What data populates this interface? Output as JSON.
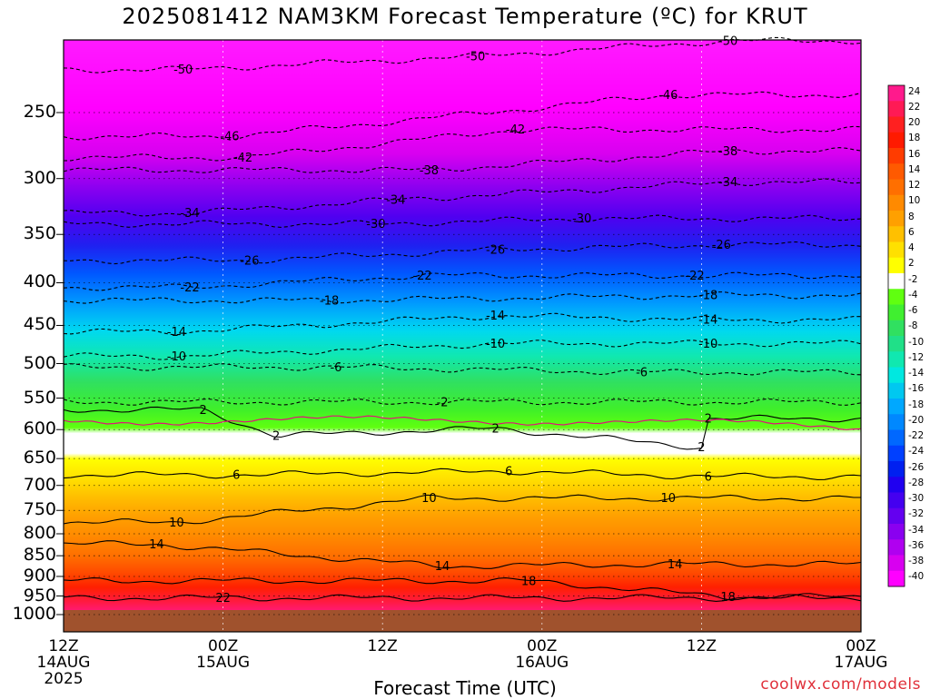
{
  "chart_data": {
    "type": "heatmap",
    "title": "2025081412 NAM3KM Forecast Temperature (ºC) for KRUT",
    "xlabel": "Forecast Time (UTC)",
    "ylabel": "",
    "credit": "coolwx.com/models",
    "x_ticks": [
      {
        "top": "12Z",
        "bottom": "14AUG",
        "extra": "2025",
        "hours": 0
      },
      {
        "top": "00Z",
        "bottom": "15AUG",
        "extra": "",
        "hours": 12
      },
      {
        "top": "12Z",
        "bottom": "",
        "extra": "",
        "hours": 24
      },
      {
        "top": "00Z",
        "bottom": "16AUG",
        "extra": "",
        "hours": 36
      },
      {
        "top": "12Z",
        "bottom": "",
        "extra": "",
        "hours": 48
      },
      {
        "top": "00Z",
        "bottom": "17AUG",
        "extra": "",
        "hours": 60
      }
    ],
    "y_ticks": [
      250,
      300,
      350,
      400,
      450,
      500,
      550,
      600,
      650,
      700,
      750,
      800,
      850,
      900,
      950,
      1000
    ],
    "yaxis_type": "pressure (hPa), inverted",
    "xlim_hours": [
      0,
      60
    ],
    "grid": true,
    "colorbar_labels": [
      "24",
      "22",
      "20",
      "18",
      "16",
      "14",
      "12",
      "10",
      "8",
      "6",
      "4",
      "2",
      "-2",
      "-4",
      "-6",
      "-8",
      "-10",
      "-12",
      "-14",
      "-16",
      "-18",
      "-20",
      "-22",
      "-24",
      "-26",
      "-28",
      "-30",
      "-32",
      "-34",
      "-36",
      "-38",
      "-40"
    ],
    "colorbar_colors": [
      "#ff1a8c",
      "#ff1a55",
      "#ff2020",
      "#ff1a00",
      "#ff3c00",
      "#ff5a00",
      "#ff6f00",
      "#ff8a00",
      "#ffa000",
      "#ffc000",
      "#ffe000",
      "#ffff00",
      "#ffffff",
      "#60ff10",
      "#40ef30",
      "#30e060",
      "#20e088",
      "#10e8b0",
      "#00e8e0",
      "#00c8f0",
      "#00a8ff",
      "#0088ff",
      "#0068ff",
      "#0040ff",
      "#0020f0",
      "#2000f0",
      "#4400f0",
      "#6400f0",
      "#8a00f0",
      "#b000f0",
      "#d800f0",
      "#ff00ff"
    ],
    "contour_labels": [
      {
        "value": "-50",
        "t": 9,
        "p": 222
      },
      {
        "value": "-50",
        "t": 31,
        "p": 214
      },
      {
        "value": "-50",
        "t": 50,
        "p": 205
      },
      {
        "value": "-46",
        "t": 12.5,
        "p": 267
      },
      {
        "value": "-46",
        "t": 45.5,
        "p": 238
      },
      {
        "value": "-42",
        "t": 13.5,
        "p": 283
      },
      {
        "value": "-42",
        "t": 34,
        "p": 262
      },
      {
        "value": "-38",
        "t": 27.5,
        "p": 293
      },
      {
        "value": "-38",
        "t": 50,
        "p": 278
      },
      {
        "value": "-34",
        "t": 9.5,
        "p": 330
      },
      {
        "value": "-34",
        "t": 25,
        "p": 318
      },
      {
        "value": "-34",
        "t": 50,
        "p": 303
      },
      {
        "value": "-30",
        "t": 23.5,
        "p": 340
      },
      {
        "value": "-30",
        "t": 39,
        "p": 335
      },
      {
        "value": "-26",
        "t": 14,
        "p": 376
      },
      {
        "value": "-26",
        "t": 32.5,
        "p": 365
      },
      {
        "value": "-26",
        "t": 49.5,
        "p": 360
      },
      {
        "value": "-22",
        "t": 9.5,
        "p": 405
      },
      {
        "value": "-22",
        "t": 27,
        "p": 392
      },
      {
        "value": "-22",
        "t": 47.5,
        "p": 392
      },
      {
        "value": "-18",
        "t": 20,
        "p": 420
      },
      {
        "value": "-18",
        "t": 48.5,
        "p": 414
      },
      {
        "value": "-14",
        "t": 8.5,
        "p": 458
      },
      {
        "value": "-14",
        "t": 32.5,
        "p": 438
      },
      {
        "value": "-14",
        "t": 48.5,
        "p": 443
      },
      {
        "value": "-10",
        "t": 8.5,
        "p": 490
      },
      {
        "value": "-10",
        "t": 32.5,
        "p": 473
      },
      {
        "value": "-10",
        "t": 48.5,
        "p": 473
      },
      {
        "value": "-6",
        "t": 20.5,
        "p": 505
      },
      {
        "value": "-6",
        "t": 43.5,
        "p": 512
      },
      {
        "value": "2",
        "t": 10.5,
        "p": 568
      },
      {
        "value": "-2",
        "t": 28.5,
        "p": 556
      },
      {
        "value": "2",
        "t": 48.5,
        "p": 582
      },
      {
        "value": "2",
        "t": 16,
        "p": 610
      },
      {
        "value": "2",
        "t": 32.5,
        "p": 598
      },
      {
        "value": "2",
        "t": 48,
        "p": 630
      },
      {
        "value": "6",
        "t": 13,
        "p": 680
      },
      {
        "value": "6",
        "t": 33.5,
        "p": 673
      },
      {
        "value": "6",
        "t": 48.5,
        "p": 683
      },
      {
        "value": "10",
        "t": 27.5,
        "p": 725
      },
      {
        "value": "10",
        "t": 45.5,
        "p": 725
      },
      {
        "value": "10",
        "t": 8.5,
        "p": 775
      },
      {
        "value": "14",
        "t": 7,
        "p": 823
      },
      {
        "value": "14",
        "t": 28.5,
        "p": 875
      },
      {
        "value": "14",
        "t": 46,
        "p": 870
      },
      {
        "value": "18",
        "t": 35,
        "p": 911
      },
      {
        "value": "18",
        "t": 50,
        "p": 952
      },
      {
        "value": "22",
        "t": 12,
        "p": 955
      }
    ]
  }
}
